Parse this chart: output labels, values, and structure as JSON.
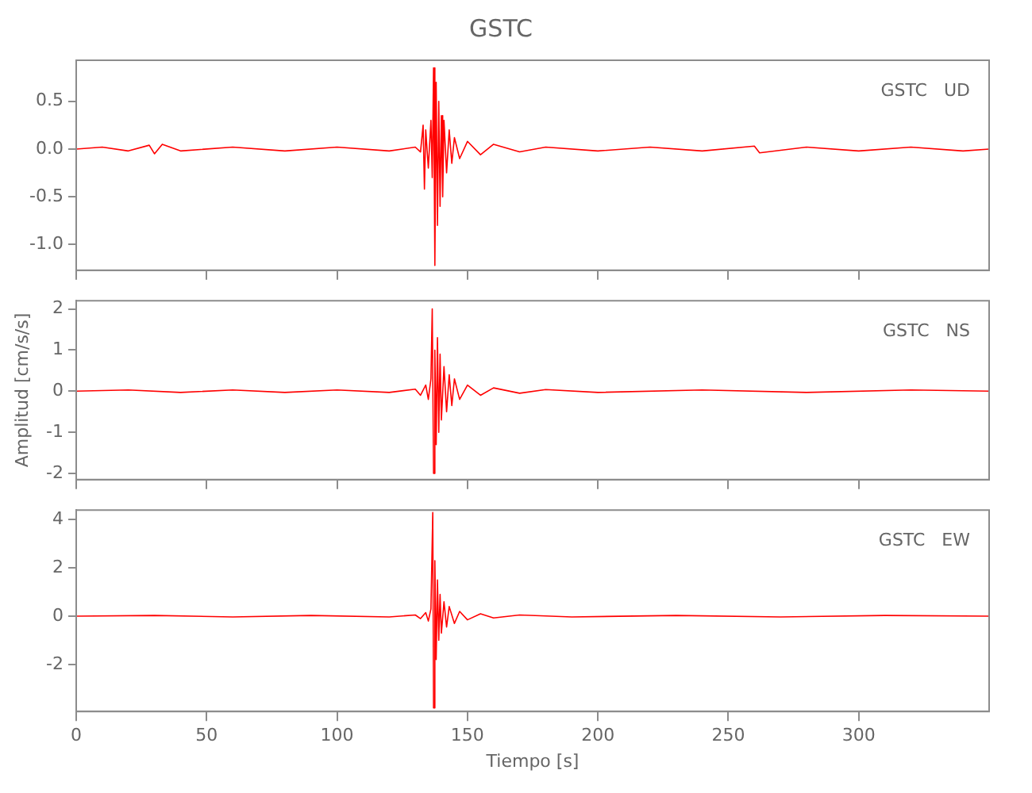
{
  "chart_data": [
    {
      "type": "line",
      "title": "GSTC",
      "annotations": [
        "GSTC   UD"
      ],
      "xlim": [
        0,
        350
      ],
      "xticks": [
        0,
        50,
        100,
        150,
        200,
        250,
        300
      ],
      "ylim": [
        -1.27,
        0.93
      ],
      "yticks": [
        {
          "value": -1,
          "label": "-1.0"
        },
        -0.5,
        {
          "value": 0,
          "label": "0.0"
        },
        0.5
      ],
      "tick_labels": "y",
      "grid": false,
      "series": [
        {
          "color": "#ff0000",
          "x": [
            0,
            10,
            20,
            28,
            30,
            33,
            40,
            60,
            80,
            100,
            120,
            130,
            132,
            133,
            133.5,
            134,
            135,
            136,
            136.5,
            137,
            137.5,
            138,
            138.5,
            139,
            139.5,
            140,
            140.5,
            141,
            142,
            143,
            144,
            145,
            147,
            150,
            155,
            160,
            170,
            180,
            200,
            220,
            240,
            260,
            262,
            280,
            300,
            320,
            340,
            350
          ],
          "values": [
            0,
            0.02,
            -0.02,
            0.04,
            -0.05,
            0.05,
            -0.02,
            0.02,
            -0.02,
            0.02,
            -0.02,
            0.02,
            -0.03,
            0.25,
            -0.42,
            0.2,
            -0.2,
            0.3,
            -0.3,
            0.85,
            -1.22,
            0.7,
            -0.8,
            0.5,
            -0.6,
            0.35,
            -0.5,
            0.3,
            -0.25,
            0.2,
            -0.15,
            0.12,
            -0.1,
            0.08,
            -0.06,
            0.05,
            -0.03,
            0.02,
            -0.02,
            0.02,
            -0.02,
            0.03,
            -0.04,
            0.02,
            -0.02,
            0.02,
            -0.02,
            0
          ]
        }
      ]
    },
    {
      "type": "line",
      "ylabel": "Amplitud [cm/s/s]",
      "annotations": [
        "GSTC   NS"
      ],
      "xlim": [
        0,
        350
      ],
      "xticks": [
        0,
        50,
        100,
        150,
        200,
        250,
        300
      ],
      "ylim": [
        -2.15,
        2.2
      ],
      "yticks": [
        -2,
        -1,
        0,
        1,
        2
      ],
      "tick_labels": "y",
      "grid": false,
      "series": [
        {
          "color": "#ff0000",
          "x": [
            0,
            20,
            40,
            60,
            80,
            100,
            120,
            130,
            132,
            134,
            135,
            136,
            136.5,
            137,
            137.5,
            138,
            138.5,
            139,
            139.5,
            140,
            141,
            142,
            143,
            144,
            145,
            147,
            150,
            155,
            160,
            170,
            180,
            200,
            240,
            280,
            320,
            350
          ],
          "values": [
            0,
            0.03,
            -0.03,
            0.03,
            -0.03,
            0.03,
            -0.03,
            0.05,
            -0.1,
            0.15,
            -0.2,
            0.3,
            2.0,
            -2.0,
            1.0,
            -1.3,
            1.3,
            -1.0,
            0.9,
            -0.7,
            0.6,
            -0.5,
            0.4,
            -0.35,
            0.3,
            -0.2,
            0.15,
            -0.1,
            0.08,
            -0.05,
            0.04,
            -0.03,
            0.03,
            -0.03,
            0.03,
            0
          ]
        }
      ]
    },
    {
      "type": "line",
      "xlabel": "Tiempo [s]",
      "annotations": [
        "GSTC   EW"
      ],
      "xlim": [
        0,
        350
      ],
      "xticks": [
        0,
        50,
        100,
        150,
        200,
        250,
        300
      ],
      "ylim": [
        -3.95,
        4.4
      ],
      "yticks": [
        -2,
        0,
        2,
        4
      ],
      "grid": false,
      "series": [
        {
          "color": "#ff0000",
          "x": [
            0,
            30,
            60,
            90,
            120,
            130,
            132,
            134,
            135,
            136,
            136.7,
            137,
            137.5,
            138,
            138.5,
            139,
            139.5,
            140,
            141,
            142,
            143,
            145,
            147,
            150,
            155,
            160,
            170,
            190,
            230,
            270,
            310,
            350
          ],
          "values": [
            0,
            0.03,
            -0.03,
            0.03,
            -0.03,
            0.05,
            -0.1,
            0.15,
            -0.2,
            0.3,
            4.3,
            -3.8,
            2.3,
            -1.8,
            1.5,
            -1.0,
            0.9,
            -0.7,
            0.6,
            -0.45,
            0.4,
            -0.3,
            0.2,
            -0.15,
            0.1,
            -0.07,
            0.05,
            -0.03,
            0.03,
            -0.03,
            0.03,
            0
          ]
        }
      ]
    }
  ]
}
